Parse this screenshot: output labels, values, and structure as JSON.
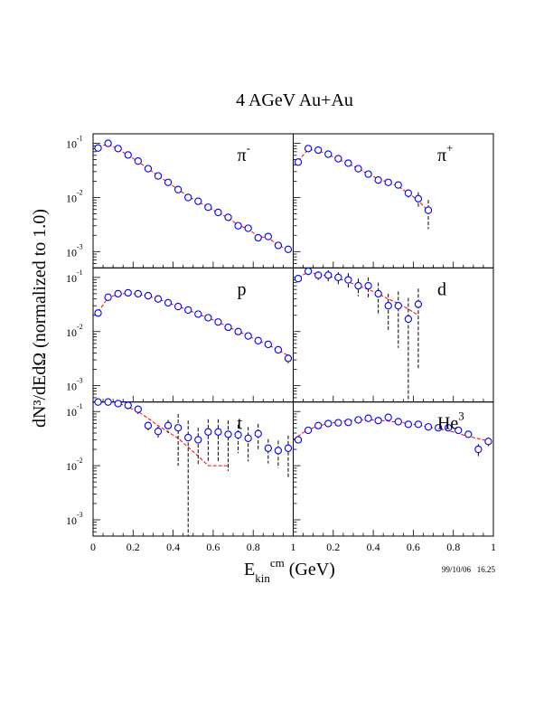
{
  "title": "4 AGeV Au+Au",
  "ylabel": "dN³/dEdΩ (normalized to 1.0)",
  "xlabel": {
    "base": "E",
    "sub": "kin",
    "sup": "cm",
    "unit": " (GeV)"
  },
  "timestamp": "99/10/06   16.25",
  "colors": {
    "points": "#0000ff",
    "curve": "#ff0000",
    "axes": "#000000",
    "background": "#ffffff"
  },
  "x_tick_labels": [
    "0",
    "0.2",
    "0.4",
    "0.6",
    "0.8",
    "1"
  ],
  "chart_data": [
    {
      "type": "scatter",
      "panel": "top-left",
      "label": {
        "base": "π",
        "sup": "-"
      },
      "xlim": [
        0,
        1
      ],
      "ylim": [
        0.0005,
        0.15
      ],
      "yscale": "log",
      "y_ticks": [
        {
          "value": 0.1,
          "base": "10",
          "exp": "-1"
        },
        {
          "value": 0.01,
          "base": "10",
          "exp": "-2"
        },
        {
          "value": 0.001,
          "base": "10",
          "exp": "-3"
        }
      ],
      "points": [
        {
          "x": 0.025,
          "y": 0.082,
          "err": 0.004
        },
        {
          "x": 0.075,
          "y": 0.1,
          "err": 0.004
        },
        {
          "x": 0.125,
          "y": 0.08,
          "err": 0.003
        },
        {
          "x": 0.175,
          "y": 0.061,
          "err": 0.003
        },
        {
          "x": 0.225,
          "y": 0.047,
          "err": 0.002
        },
        {
          "x": 0.275,
          "y": 0.034,
          "err": 0.002
        },
        {
          "x": 0.325,
          "y": 0.025,
          "err": 0.001
        },
        {
          "x": 0.375,
          "y": 0.019,
          "err": 0.001
        },
        {
          "x": 0.425,
          "y": 0.014,
          "err": 0.0007
        },
        {
          "x": 0.475,
          "y": 0.01,
          "err": 0.0005
        },
        {
          "x": 0.525,
          "y": 0.0085,
          "err": 0.0004
        },
        {
          "x": 0.575,
          "y": 0.0066,
          "err": 0.0003
        },
        {
          "x": 0.625,
          "y": 0.0053,
          "err": 0.0003
        },
        {
          "x": 0.675,
          "y": 0.0043,
          "err": 0.0002
        },
        {
          "x": 0.725,
          "y": 0.003,
          "err": 0.00015
        },
        {
          "x": 0.775,
          "y": 0.0027,
          "err": 0.00015
        },
        {
          "x": 0.825,
          "y": 0.0018,
          "err": 0.0001
        },
        {
          "x": 0.875,
          "y": 0.0019,
          "err": 0.0001
        },
        {
          "x": 0.925,
          "y": 0.0013,
          "err": 0.0001
        },
        {
          "x": 0.975,
          "y": 0.0011,
          "err": 0.0001
        }
      ],
      "curve": [
        {
          "x": 0.025,
          "y": 0.085
        },
        {
          "x": 0.075,
          "y": 0.097
        },
        {
          "x": 0.125,
          "y": 0.078
        },
        {
          "x": 0.175,
          "y": 0.06
        },
        {
          "x": 0.225,
          "y": 0.046
        },
        {
          "x": 0.275,
          "y": 0.034
        },
        {
          "x": 0.325,
          "y": 0.025
        },
        {
          "x": 0.375,
          "y": 0.019
        },
        {
          "x": 0.425,
          "y": 0.014
        },
        {
          "x": 0.475,
          "y": 0.0105
        },
        {
          "x": 0.525,
          "y": 0.0083
        },
        {
          "x": 0.575,
          "y": 0.0066
        },
        {
          "x": 0.625,
          "y": 0.0052
        },
        {
          "x": 0.675,
          "y": 0.0042
        },
        {
          "x": 0.725,
          "y": 0.0031
        },
        {
          "x": 0.775,
          "y": 0.0026
        },
        {
          "x": 0.825,
          "y": 0.0019
        },
        {
          "x": 0.875,
          "y": 0.0018
        },
        {
          "x": 0.925,
          "y": 0.0013
        },
        {
          "x": 0.975,
          "y": 0.0011
        }
      ]
    },
    {
      "type": "scatter",
      "panel": "top-right",
      "label": {
        "base": "π",
        "sup": "+"
      },
      "xlim": [
        0,
        1
      ],
      "ylim": [
        0.0005,
        0.15
      ],
      "yscale": "log",
      "y_ticks": [
        {
          "value": 0.1,
          "base": "10",
          "exp": "-1"
        },
        {
          "value": 0.01,
          "base": "10",
          "exp": "-2"
        },
        {
          "value": 0.001,
          "base": "10",
          "exp": "-3"
        }
      ],
      "points": [
        {
          "x": 0.025,
          "y": 0.045,
          "err": 0.004
        },
        {
          "x": 0.075,
          "y": 0.08,
          "err": 0.005
        },
        {
          "x": 0.125,
          "y": 0.075,
          "err": 0.004
        },
        {
          "x": 0.175,
          "y": 0.063,
          "err": 0.004
        },
        {
          "x": 0.225,
          "y": 0.052,
          "err": 0.003
        },
        {
          "x": 0.275,
          "y": 0.043,
          "err": 0.003
        },
        {
          "x": 0.325,
          "y": 0.034,
          "err": 0.002
        },
        {
          "x": 0.375,
          "y": 0.027,
          "err": 0.002
        },
        {
          "x": 0.425,
          "y": 0.021,
          "err": 0.002
        },
        {
          "x": 0.475,
          "y": 0.019,
          "err": 0.002
        },
        {
          "x": 0.525,
          "y": 0.017,
          "err": 0.002
        },
        {
          "x": 0.575,
          "y": 0.012,
          "err": 0.002
        },
        {
          "x": 0.625,
          "y": 0.0095,
          "err": 0.003
        },
        {
          "x": 0.675,
          "y": 0.0058,
          "err": 0.0032
        }
      ],
      "curve": [
        {
          "x": 0.025,
          "y": 0.047
        },
        {
          "x": 0.075,
          "y": 0.078
        },
        {
          "x": 0.125,
          "y": 0.073
        },
        {
          "x": 0.175,
          "y": 0.062
        },
        {
          "x": 0.225,
          "y": 0.051
        },
        {
          "x": 0.275,
          "y": 0.042
        },
        {
          "x": 0.325,
          "y": 0.034
        },
        {
          "x": 0.375,
          "y": 0.027
        },
        {
          "x": 0.425,
          "y": 0.022
        },
        {
          "x": 0.475,
          "y": 0.019
        },
        {
          "x": 0.525,
          "y": 0.016
        },
        {
          "x": 0.575,
          "y": 0.012
        },
        {
          "x": 0.625,
          "y": 0.0088
        },
        {
          "x": 0.675,
          "y": 0.0056
        }
      ]
    },
    {
      "type": "scatter",
      "panel": "middle-left",
      "label": {
        "base": "p",
        "sup": ""
      },
      "xlim": [
        0,
        1
      ],
      "ylim": [
        0.0005,
        0.15
      ],
      "yscale": "log",
      "y_ticks": [
        {
          "value": 0.1,
          "base": "10",
          "exp": "-1"
        },
        {
          "value": 0.01,
          "base": "10",
          "exp": "-2"
        },
        {
          "value": 0.001,
          "base": "10",
          "exp": "-3"
        }
      ],
      "points": [
        {
          "x": 0.025,
          "y": 0.022,
          "err": 0.002
        },
        {
          "x": 0.075,
          "y": 0.043,
          "err": 0.002
        },
        {
          "x": 0.125,
          "y": 0.05,
          "err": 0.002
        },
        {
          "x": 0.175,
          "y": 0.052,
          "err": 0.002
        },
        {
          "x": 0.225,
          "y": 0.05,
          "err": 0.002
        },
        {
          "x": 0.275,
          "y": 0.046,
          "err": 0.002
        },
        {
          "x": 0.325,
          "y": 0.04,
          "err": 0.002
        },
        {
          "x": 0.375,
          "y": 0.034,
          "err": 0.002
        },
        {
          "x": 0.425,
          "y": 0.029,
          "err": 0.001
        },
        {
          "x": 0.475,
          "y": 0.025,
          "err": 0.001
        },
        {
          "x": 0.525,
          "y": 0.021,
          "err": 0.001
        },
        {
          "x": 0.575,
          "y": 0.018,
          "err": 0.001
        },
        {
          "x": 0.625,
          "y": 0.015,
          "err": 0.001
        },
        {
          "x": 0.675,
          "y": 0.012,
          "err": 0.0008
        },
        {
          "x": 0.725,
          "y": 0.01,
          "err": 0.0007
        },
        {
          "x": 0.775,
          "y": 0.0083,
          "err": 0.0006
        },
        {
          "x": 0.825,
          "y": 0.0068,
          "err": 0.0005
        },
        {
          "x": 0.875,
          "y": 0.0058,
          "err": 0.0005
        },
        {
          "x": 0.925,
          "y": 0.0046,
          "err": 0.0005
        },
        {
          "x": 0.975,
          "y": 0.0032,
          "err": 0.0006
        }
      ],
      "curve": [
        {
          "x": 0.025,
          "y": 0.023
        },
        {
          "x": 0.075,
          "y": 0.042
        },
        {
          "x": 0.125,
          "y": 0.049
        },
        {
          "x": 0.175,
          "y": 0.051
        },
        {
          "x": 0.225,
          "y": 0.049
        },
        {
          "x": 0.275,
          "y": 0.045
        },
        {
          "x": 0.325,
          "y": 0.04
        },
        {
          "x": 0.375,
          "y": 0.034
        },
        {
          "x": 0.425,
          "y": 0.029
        },
        {
          "x": 0.475,
          "y": 0.025
        },
        {
          "x": 0.525,
          "y": 0.021
        },
        {
          "x": 0.575,
          "y": 0.018
        },
        {
          "x": 0.625,
          "y": 0.015
        },
        {
          "x": 0.675,
          "y": 0.0122
        },
        {
          "x": 0.725,
          "y": 0.0101
        },
        {
          "x": 0.775,
          "y": 0.0083
        },
        {
          "x": 0.825,
          "y": 0.0068
        },
        {
          "x": 0.875,
          "y": 0.0057
        },
        {
          "x": 0.925,
          "y": 0.0045
        },
        {
          "x": 0.975,
          "y": 0.0036
        }
      ]
    },
    {
      "type": "scatter",
      "panel": "middle-right",
      "label": {
        "base": "d",
        "sup": ""
      },
      "xlim": [
        0,
        1
      ],
      "ylim": [
        0.0005,
        0.15
      ],
      "yscale": "log",
      "y_ticks": [
        {
          "value": 0.1,
          "base": "10",
          "exp": "-1"
        },
        {
          "value": 0.01,
          "base": "10",
          "exp": "-2"
        },
        {
          "value": 0.001,
          "base": "10",
          "exp": "-3"
        }
      ],
      "points": [
        {
          "x": 0.025,
          "y": 0.095,
          "err": 0.01
        },
        {
          "x": 0.075,
          "y": 0.13,
          "err": 0.02
        },
        {
          "x": 0.125,
          "y": 0.11,
          "err": 0.02
        },
        {
          "x": 0.175,
          "y": 0.11,
          "err": 0.025
        },
        {
          "x": 0.225,
          "y": 0.1,
          "err": 0.025
        },
        {
          "x": 0.275,
          "y": 0.09,
          "err": 0.03
        },
        {
          "x": 0.325,
          "y": 0.07,
          "err": 0.025
        },
        {
          "x": 0.375,
          "y": 0.07,
          "err": 0.03
        },
        {
          "x": 0.425,
          "y": 0.05,
          "err": 0.03
        },
        {
          "x": 0.475,
          "y": 0.03,
          "err": 0.02
        },
        {
          "x": 0.525,
          "y": 0.03,
          "err": 0.025
        },
        {
          "x": 0.575,
          "y": 0.017,
          "err": 0.025
        },
        {
          "x": 0.625,
          "y": 0.032,
          "err": 0.03
        }
      ],
      "curve": [
        {
          "x": 0.025,
          "y": 0.1
        },
        {
          "x": 0.075,
          "y": 0.125
        },
        {
          "x": 0.125,
          "y": 0.115
        },
        {
          "x": 0.175,
          "y": 0.105
        },
        {
          "x": 0.225,
          "y": 0.095
        },
        {
          "x": 0.275,
          "y": 0.083
        },
        {
          "x": 0.325,
          "y": 0.07
        },
        {
          "x": 0.375,
          "y": 0.06
        },
        {
          "x": 0.425,
          "y": 0.05
        },
        {
          "x": 0.475,
          "y": 0.04
        },
        {
          "x": 0.525,
          "y": 0.033
        },
        {
          "x": 0.575,
          "y": 0.026
        },
        {
          "x": 0.625,
          "y": 0.02
        }
      ]
    },
    {
      "type": "scatter",
      "panel": "bottom-left",
      "label": {
        "base": "t",
        "sup": ""
      },
      "xlim": [
        0,
        1
      ],
      "ylim": [
        0.0005,
        0.15
      ],
      "yscale": "log",
      "y_ticks": [
        {
          "value": 0.1,
          "base": "10",
          "exp": "-1"
        },
        {
          "value": 0.01,
          "base": "10",
          "exp": "-2"
        },
        {
          "value": 0.001,
          "base": "10",
          "exp": "-3"
        }
      ],
      "points": [
        {
          "x": 0.025,
          "y": 0.17,
          "err": 0.02
        },
        {
          "x": 0.075,
          "y": 0.17,
          "err": 0.02
        },
        {
          "x": 0.125,
          "y": 0.14,
          "err": 0.02
        },
        {
          "x": 0.175,
          "y": 0.13,
          "err": 0.02
        },
        {
          "x": 0.225,
          "y": 0.11,
          "err": 0.02
        },
        {
          "x": 0.275,
          "y": 0.055,
          "err": 0.01
        },
        {
          "x": 0.325,
          "y": 0.043,
          "err": 0.01
        },
        {
          "x": 0.375,
          "y": 0.055,
          "err": 0.015
        },
        {
          "x": 0.425,
          "y": 0.05,
          "err": 0.04
        },
        {
          "x": 0.475,
          "y": 0.033,
          "err": 0.035
        },
        {
          "x": 0.525,
          "y": 0.03,
          "err": 0.02
        },
        {
          "x": 0.575,
          "y": 0.042,
          "err": 0.03
        },
        {
          "x": 0.625,
          "y": 0.042,
          "err": 0.03
        },
        {
          "x": 0.675,
          "y": 0.038,
          "err": 0.03
        },
        {
          "x": 0.725,
          "y": 0.037,
          "err": 0.02
        },
        {
          "x": 0.775,
          "y": 0.032,
          "err": 0.02
        },
        {
          "x": 0.825,
          "y": 0.039,
          "err": 0.02
        },
        {
          "x": 0.875,
          "y": 0.021,
          "err": 0.01
        },
        {
          "x": 0.925,
          "y": 0.019,
          "err": 0.01
        },
        {
          "x": 0.975,
          "y": 0.021,
          "err": 0.015
        }
      ],
      "curve": [
        {
          "x": 0.025,
          "y": 0.19
        },
        {
          "x": 0.075,
          "y": 0.17
        },
        {
          "x": 0.125,
          "y": 0.145
        },
        {
          "x": 0.175,
          "y": 0.12
        },
        {
          "x": 0.225,
          "y": 0.1
        },
        {
          "x": 0.275,
          "y": 0.075
        },
        {
          "x": 0.325,
          "y": 0.055
        },
        {
          "x": 0.375,
          "y": 0.042
        },
        {
          "x": 0.425,
          "y": 0.032
        },
        {
          "x": 0.475,
          "y": 0.022
        },
        {
          "x": 0.525,
          "y": 0.015
        },
        {
          "x": 0.575,
          "y": 0.01
        },
        {
          "x": 0.625,
          "y": 0.01
        },
        {
          "x": 0.675,
          "y": 0.01
        }
      ]
    },
    {
      "type": "scatter",
      "panel": "bottom-right",
      "label": {
        "base": "He",
        "sup": "3"
      },
      "xlim": [
        0,
        1
      ],
      "ylim": [
        0.0005,
        0.15
      ],
      "yscale": "log",
      "y_ticks": [
        {
          "value": 0.1,
          "base": "10",
          "exp": "-1"
        },
        {
          "value": 0.01,
          "base": "10",
          "exp": "-2"
        },
        {
          "value": 0.001,
          "base": "10",
          "exp": "-3"
        }
      ],
      "points": [
        {
          "x": 0.025,
          "y": 0.03,
          "err": 0.003
        },
        {
          "x": 0.075,
          "y": 0.045,
          "err": 0.004
        },
        {
          "x": 0.125,
          "y": 0.055,
          "err": 0.005
        },
        {
          "x": 0.175,
          "y": 0.06,
          "err": 0.005
        },
        {
          "x": 0.225,
          "y": 0.062,
          "err": 0.005
        },
        {
          "x": 0.275,
          "y": 0.063,
          "err": 0.005
        },
        {
          "x": 0.325,
          "y": 0.07,
          "err": 0.006
        },
        {
          "x": 0.375,
          "y": 0.075,
          "err": 0.007
        },
        {
          "x": 0.425,
          "y": 0.068,
          "err": 0.007
        },
        {
          "x": 0.475,
          "y": 0.078,
          "err": 0.008
        },
        {
          "x": 0.525,
          "y": 0.065,
          "err": 0.007
        },
        {
          "x": 0.575,
          "y": 0.058,
          "err": 0.006
        },
        {
          "x": 0.625,
          "y": 0.058,
          "err": 0.006
        },
        {
          "x": 0.675,
          "y": 0.052,
          "err": 0.006
        },
        {
          "x": 0.725,
          "y": 0.05,
          "err": 0.005
        },
        {
          "x": 0.775,
          "y": 0.05,
          "err": 0.005
        },
        {
          "x": 0.825,
          "y": 0.045,
          "err": 0.005
        },
        {
          "x": 0.875,
          "y": 0.038,
          "err": 0.005
        },
        {
          "x": 0.925,
          "y": 0.02,
          "err": 0.005
        },
        {
          "x": 0.975,
          "y": 0.028,
          "err": 0.005
        }
      ],
      "curve": [
        {
          "x": 0.0,
          "y": 0.03
        },
        {
          "x": 0.05,
          "y": 0.041
        },
        {
          "x": 0.1,
          "y": 0.05
        },
        {
          "x": 0.15,
          "y": 0.057
        },
        {
          "x": 0.2,
          "y": 0.062
        },
        {
          "x": 0.25,
          "y": 0.066
        },
        {
          "x": 0.3,
          "y": 0.069
        },
        {
          "x": 0.35,
          "y": 0.07
        },
        {
          "x": 0.4,
          "y": 0.07
        },
        {
          "x": 0.45,
          "y": 0.068
        },
        {
          "x": 0.5,
          "y": 0.065
        },
        {
          "x": 0.55,
          "y": 0.062
        },
        {
          "x": 0.6,
          "y": 0.058
        },
        {
          "x": 0.65,
          "y": 0.054
        },
        {
          "x": 0.7,
          "y": 0.05
        },
        {
          "x": 0.75,
          "y": 0.046
        },
        {
          "x": 0.8,
          "y": 0.042
        },
        {
          "x": 0.85,
          "y": 0.037
        },
        {
          "x": 0.9,
          "y": 0.033
        },
        {
          "x": 0.95,
          "y": 0.03
        },
        {
          "x": 1.0,
          "y": 0.027
        }
      ]
    }
  ]
}
